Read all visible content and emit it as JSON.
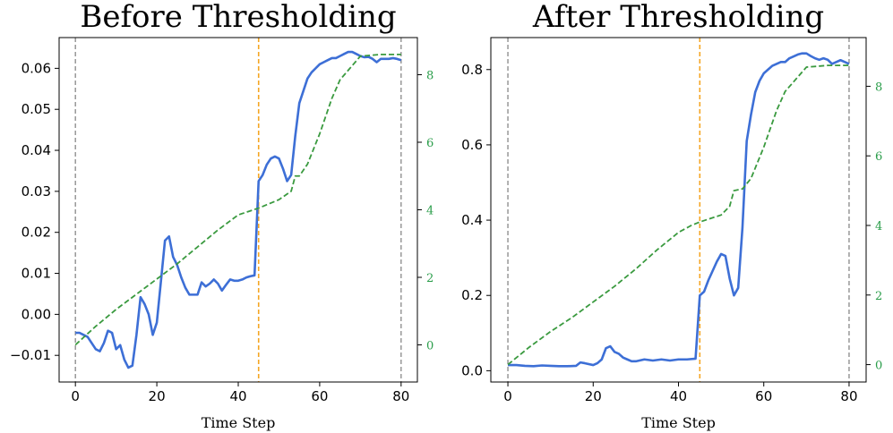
{
  "colors": {
    "primary_line": "#3d6fd6",
    "secondary_line": "#3a9a3f",
    "marker_line": "#f5a623",
    "boundary_line": "#888888",
    "right_tick": "#2a9d4a"
  },
  "chart_data": [
    {
      "type": "line",
      "title": "Before Thresholding",
      "xlabel": "Time Step",
      "ylabel": "",
      "xlim": [
        -4,
        84
      ],
      "ylim": [
        -0.0165,
        0.0675
      ],
      "y2lim": [
        -1.1,
        9.1
      ],
      "xticks": [
        0,
        20,
        40,
        60,
        80
      ],
      "xtick_labels": [
        "0",
        "20",
        "40",
        "60",
        "80"
      ],
      "yticks": [
        -0.01,
        0.0,
        0.01,
        0.02,
        0.03,
        0.04,
        0.05,
        0.06
      ],
      "ytick_labels": [
        "−0.01",
        "0.00",
        "0.01",
        "0.02",
        "0.03",
        "0.04",
        "0.05",
        "0.06"
      ],
      "y2ticks": [
        0,
        2,
        4,
        6,
        8
      ],
      "y2tick_labels": [
        "0",
        "2",
        "4",
        "6",
        "8"
      ],
      "vlines": [
        {
          "x": 0,
          "kind": "boundary"
        },
        {
          "x": 45,
          "kind": "marker"
        },
        {
          "x": 80,
          "kind": "boundary"
        }
      ],
      "series": [
        {
          "name": "primary",
          "axis": "left",
          "style": "solid",
          "x": [
            0,
            1,
            2,
            3,
            4,
            5,
            6,
            7,
            8,
            9,
            10,
            11,
            12,
            13,
            14,
            15,
            16,
            17,
            18,
            19,
            20,
            21,
            22,
            23,
            24,
            25,
            26,
            27,
            28,
            29,
            30,
            31,
            32,
            33,
            34,
            35,
            36,
            37,
            38,
            39,
            40,
            41,
            42,
            43,
            44,
            45,
            46,
            47,
            48,
            49,
            50,
            51,
            52,
            53,
            54,
            55,
            56,
            57,
            58,
            59,
            60,
            61,
            62,
            63,
            64,
            65,
            66,
            67,
            68,
            69,
            70,
            71,
            72,
            73,
            74,
            75,
            76,
            77,
            78,
            79,
            80
          ],
          "values": [
            -0.0045,
            -0.0045,
            -0.005,
            -0.0055,
            -0.007,
            -0.0085,
            -0.009,
            -0.007,
            -0.004,
            -0.0045,
            -0.0085,
            -0.0075,
            -0.011,
            -0.013,
            -0.0125,
            -0.005,
            0.0042,
            0.0025,
            0.0,
            -0.005,
            -0.002,
            0.008,
            0.018,
            0.019,
            0.014,
            0.012,
            0.009,
            0.0065,
            0.0048,
            0.0048,
            0.0048,
            0.0078,
            0.0068,
            0.0075,
            0.0085,
            0.0075,
            0.0058,
            0.0072,
            0.0085,
            0.0082,
            0.0082,
            0.0085,
            0.009,
            0.0093,
            0.0095,
            0.0325,
            0.034,
            0.0365,
            0.038,
            0.0385,
            0.038,
            0.0355,
            0.0325,
            0.034,
            0.0435,
            0.0515,
            0.0545,
            0.0575,
            0.059,
            0.06,
            0.061,
            0.0615,
            0.062,
            0.0625,
            0.0625,
            0.063,
            0.0635,
            0.064,
            0.064,
            0.0635,
            0.063,
            0.0627,
            0.0628,
            0.0623,
            0.0615,
            0.0623,
            0.0623,
            0.0623,
            0.0625,
            0.0623,
            0.062
          ]
        },
        {
          "name": "secondary",
          "axis": "right",
          "style": "dashed",
          "x": [
            0,
            5,
            10,
            15,
            20,
            25,
            30,
            35,
            40,
            45,
            50,
            53,
            54,
            55,
            57,
            60,
            63,
            65,
            70,
            75,
            80
          ],
          "values": [
            0.0,
            0.55,
            1.05,
            1.5,
            1.95,
            2.4,
            2.9,
            3.4,
            3.85,
            4.05,
            4.3,
            4.55,
            5.0,
            5.0,
            5.35,
            6.25,
            7.3,
            7.85,
            8.55,
            8.6,
            8.6
          ]
        }
      ]
    },
    {
      "type": "line",
      "title": "After Thresholding",
      "xlabel": "Time Step",
      "ylabel": "",
      "xlim": [
        -4,
        84
      ],
      "ylim": [
        -0.03,
        0.885
      ],
      "y2lim": [
        -0.5,
        9.4
      ],
      "xticks": [
        0,
        20,
        40,
        60,
        80
      ],
      "xtick_labels": [
        "0",
        "20",
        "40",
        "60",
        "80"
      ],
      "yticks": [
        0.0,
        0.2,
        0.4,
        0.6,
        0.8
      ],
      "ytick_labels": [
        "0.0",
        "0.2",
        "0.4",
        "0.6",
        "0.8"
      ],
      "y2ticks": [
        0,
        2,
        4,
        6,
        8
      ],
      "y2tick_labels": [
        "0",
        "2",
        "4",
        "6",
        "8"
      ],
      "vlines": [
        {
          "x": 0,
          "kind": "boundary"
        },
        {
          "x": 45,
          "kind": "marker"
        },
        {
          "x": 80,
          "kind": "boundary"
        }
      ],
      "series": [
        {
          "name": "primary",
          "axis": "left",
          "style": "solid",
          "x": [
            0,
            2,
            4,
            6,
            8,
            10,
            12,
            14,
            16,
            17,
            18,
            20,
            21,
            22,
            23,
            24,
            25,
            26,
            27,
            28,
            29,
            30,
            32,
            34,
            36,
            38,
            40,
            42,
            44,
            45,
            46,
            47,
            48,
            49,
            50,
            51,
            52,
            53,
            54,
            55,
            56,
            57,
            58,
            59,
            60,
            61,
            62,
            63,
            64,
            65,
            66,
            67,
            68,
            69,
            70,
            71,
            72,
            73,
            74,
            75,
            76,
            77,
            78,
            79,
            80
          ],
          "values": [
            0.015,
            0.015,
            0.013,
            0.012,
            0.014,
            0.013,
            0.012,
            0.012,
            0.013,
            0.022,
            0.02,
            0.015,
            0.02,
            0.03,
            0.06,
            0.065,
            0.05,
            0.045,
            0.035,
            0.03,
            0.025,
            0.025,
            0.03,
            0.027,
            0.03,
            0.027,
            0.03,
            0.03,
            0.032,
            0.2,
            0.21,
            0.24,
            0.265,
            0.29,
            0.31,
            0.305,
            0.245,
            0.2,
            0.22,
            0.38,
            0.61,
            0.68,
            0.74,
            0.77,
            0.79,
            0.8,
            0.81,
            0.815,
            0.82,
            0.82,
            0.83,
            0.835,
            0.84,
            0.843,
            0.843,
            0.836,
            0.83,
            0.826,
            0.83,
            0.826,
            0.815,
            0.82,
            0.825,
            0.82,
            0.815
          ]
        },
        {
          "name": "secondary",
          "axis": "right",
          "style": "dashed",
          "x": [
            0,
            5,
            10,
            15,
            20,
            25,
            30,
            35,
            40,
            43,
            45,
            50,
            52,
            53,
            55,
            57,
            60,
            63,
            65,
            70,
            75,
            80
          ],
          "values": [
            0.0,
            0.5,
            0.95,
            1.35,
            1.8,
            2.25,
            2.75,
            3.3,
            3.8,
            4.0,
            4.1,
            4.3,
            4.55,
            5.0,
            5.05,
            5.35,
            6.25,
            7.3,
            7.85,
            8.55,
            8.6,
            8.6
          ]
        }
      ]
    }
  ]
}
